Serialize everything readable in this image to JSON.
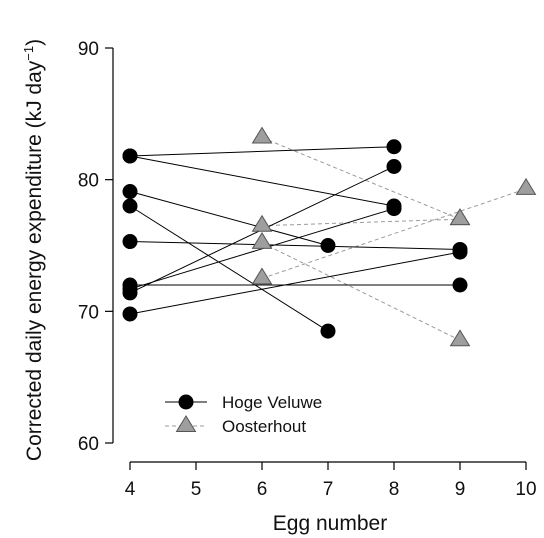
{
  "chart_data": {
    "type": "line",
    "xlabel": "Egg number",
    "ylabel": "Corrected daily energy expenditure (kJ day",
    "ylabel_sup": "−1",
    "ylabel_close": ")",
    "xlim": [
      4,
      10
    ],
    "ylim": [
      60,
      90
    ],
    "xticks": [
      "4",
      "5",
      "6",
      "7",
      "8",
      "9",
      "10"
    ],
    "yticks": [
      "60",
      "70",
      "80",
      "90"
    ],
    "grid": false,
    "legend_position": "bottom-left",
    "legend": [
      {
        "label": "Hoge Veluwe",
        "marker": "circle",
        "line": "solid",
        "color": "#000000"
      },
      {
        "label": "Oosterhout",
        "marker": "triangle",
        "line": "dashed",
        "color": "#999999"
      }
    ],
    "series": [
      {
        "name": "Hoge Veluwe",
        "marker": "circle",
        "line": "solid",
        "color": "#000000",
        "points": [
          [
            4,
            81.8
          ],
          [
            8,
            82.5
          ]
        ]
      },
      {
        "name": "Hoge Veluwe",
        "marker": "circle",
        "line": "solid",
        "color": "#000000",
        "points": [
          [
            4,
            81.8
          ],
          [
            8,
            78.0
          ]
        ]
      },
      {
        "name": "Hoge Veluwe",
        "marker": "circle",
        "line": "solid",
        "color": "#000000",
        "points": [
          [
            4,
            79.1
          ],
          [
            7,
            75.0
          ]
        ]
      },
      {
        "name": "Hoge Veluwe",
        "marker": "circle",
        "line": "solid",
        "color": "#000000",
        "points": [
          [
            4,
            78.0
          ],
          [
            7,
            68.5
          ]
        ]
      },
      {
        "name": "Hoge Veluwe",
        "marker": "circle",
        "line": "solid",
        "color": "#000000",
        "points": [
          [
            4,
            75.3
          ],
          [
            9,
            74.7
          ]
        ]
      },
      {
        "name": "Hoge Veluwe",
        "marker": "circle",
        "line": "solid",
        "color": "#000000",
        "points": [
          [
            4,
            72.0
          ],
          [
            9,
            72.0
          ]
        ]
      },
      {
        "name": "Hoge Veluwe",
        "marker": "circle",
        "line": "solid",
        "color": "#000000",
        "points": [
          [
            4,
            71.4
          ],
          [
            8,
            81.0
          ]
        ]
      },
      {
        "name": "Hoge Veluwe",
        "marker": "circle",
        "line": "solid",
        "color": "#000000",
        "points": [
          [
            4,
            71.7
          ],
          [
            8,
            77.8
          ]
        ]
      },
      {
        "name": "Hoge Veluwe",
        "marker": "circle",
        "line": "solid",
        "color": "#000000",
        "points": [
          [
            4,
            69.8
          ],
          [
            9,
            74.5
          ]
        ]
      },
      {
        "name": "Oosterhout",
        "marker": "triangle",
        "line": "dashed",
        "color": "#999999",
        "points": [
          [
            6,
            83.2
          ],
          [
            9,
            77.0
          ]
        ]
      },
      {
        "name": "Oosterhout",
        "marker": "triangle",
        "line": "dashed",
        "color": "#999999",
        "points": [
          [
            6,
            76.5
          ],
          [
            9,
            77.0
          ]
        ]
      },
      {
        "name": "Oosterhout",
        "marker": "triangle",
        "line": "dashed",
        "color": "#999999",
        "points": [
          [
            6,
            75.2
          ],
          [
            9,
            67.8
          ]
        ]
      },
      {
        "name": "Oosterhout",
        "marker": "triangle",
        "line": "dashed",
        "color": "#999999",
        "points": [
          [
            6,
            72.5
          ],
          [
            10,
            79.3
          ]
        ]
      }
    ]
  }
}
